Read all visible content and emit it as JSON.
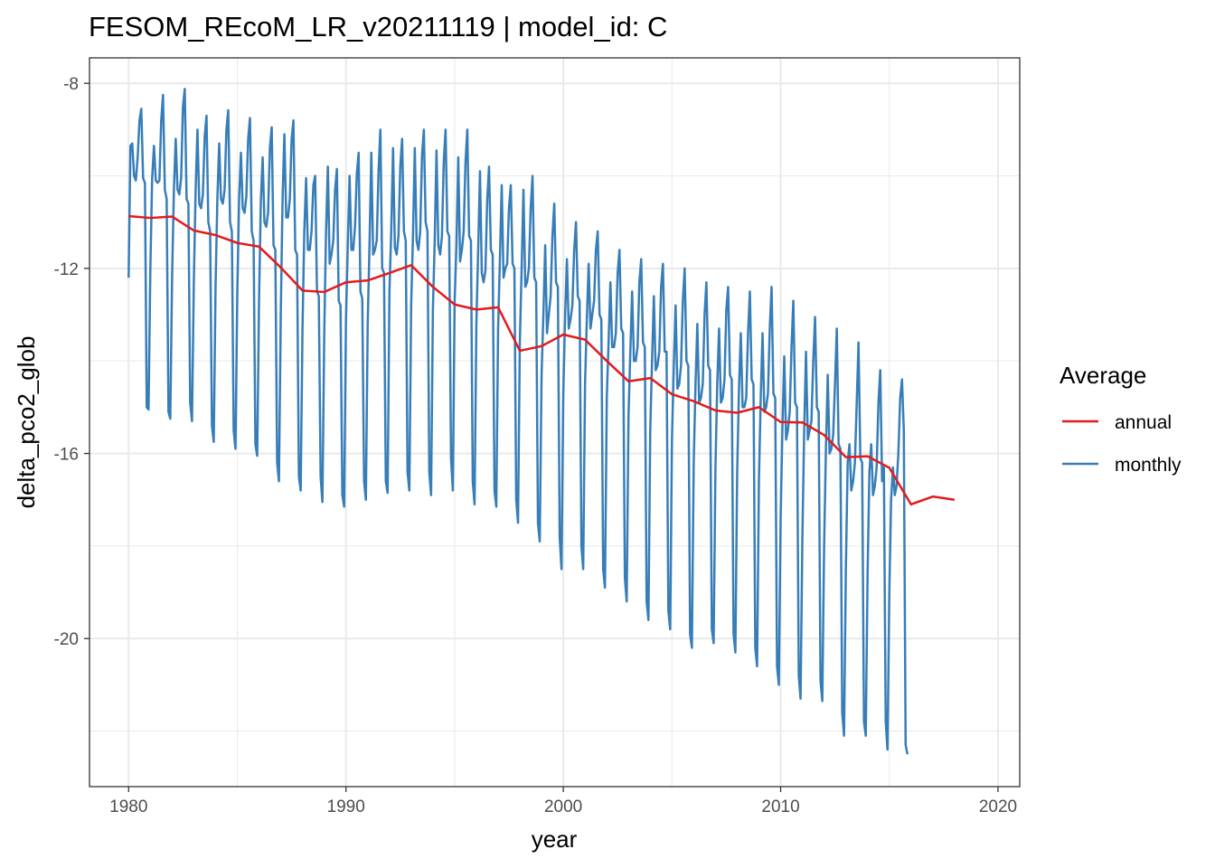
{
  "chart_data": {
    "type": "line",
    "title": "FESOM_REcoM_LR_v20211119 | model_id: C",
    "xlabel": "year",
    "ylabel": "delta_pco2_glob",
    "xlim": [
      1978.2,
      2021.0
    ],
    "ylim": [
      -23.2,
      -7.45
    ],
    "x_ticks": [
      1980,
      1990,
      2000,
      2010,
      2020
    ],
    "x_tick_labels": [
      "1980",
      "1990",
      "2000",
      "2010",
      "2020"
    ],
    "y_ticks": [
      -8,
      -12,
      -16,
      -20
    ],
    "y_tick_labels": [
      "-8",
      "-12",
      "-16",
      "-20"
    ],
    "grid": true,
    "legend": {
      "title": "Average",
      "position": "right",
      "entries": [
        {
          "label": "annual",
          "color": "#e41a1c"
        },
        {
          "label": "monthly",
          "color": "#377eb8"
        }
      ]
    },
    "series": [
      {
        "name": "annual",
        "color": "#e41a1c",
        "x": [
          1980,
          1981,
          1982,
          1983,
          1984,
          1985,
          1986,
          1987,
          1988,
          1989,
          1990,
          1991,
          1992,
          1993,
          1994,
          1995,
          1996,
          1997,
          1998,
          1999,
          2000,
          2001,
          2002,
          2003,
          2004,
          2005,
          2006,
          2007,
          2008,
          2009,
          2010,
          2011,
          2012,
          2013,
          2014,
          2015,
          2016,
          2017,
          2018
        ],
        "values": [
          -10.87,
          -10.91,
          -10.88,
          -11.18,
          -11.28,
          -11.45,
          -11.53,
          -11.98,
          -12.48,
          -12.51,
          -12.3,
          -12.26,
          -12.1,
          -11.93,
          -12.4,
          -12.78,
          -12.89,
          -12.84,
          -13.78,
          -13.68,
          -13.43,
          -13.54,
          -14.0,
          -14.44,
          -14.37,
          -14.72,
          -14.87,
          -15.07,
          -15.12,
          -15.0,
          -15.32,
          -15.33,
          -15.6,
          -16.08,
          -16.06,
          -16.31,
          -17.1,
          -16.93,
          -17.0
        ]
      },
      {
        "name": "monthly",
        "color": "#377eb8",
        "x_start": 1980.0,
        "x_step": 0.083333,
        "values": [
          -12.2,
          -9.35,
          -9.3,
          -10.0,
          -10.1,
          -9.6,
          -8.8,
          -8.55,
          -10.05,
          -10.15,
          -15.0,
          -15.05,
          -12.0,
          -10.05,
          -9.35,
          -10.1,
          -10.15,
          -10.1,
          -8.8,
          -8.25,
          -10.3,
          -10.5,
          -15.1,
          -15.25,
          -12.2,
          -10.3,
          -9.2,
          -10.3,
          -10.4,
          -10.05,
          -8.5,
          -8.12,
          -10.5,
          -10.6,
          -14.9,
          -15.3,
          -12.3,
          -10.3,
          -9.0,
          -10.6,
          -10.7,
          -10.4,
          -9.15,
          -8.7,
          -11.0,
          -11.2,
          -15.4,
          -15.75,
          -12.4,
          -10.5,
          -9.3,
          -10.5,
          -10.6,
          -10.3,
          -9.0,
          -8.58,
          -11.0,
          -11.2,
          -15.5,
          -15.9,
          -12.55,
          -10.5,
          -9.5,
          -10.7,
          -10.8,
          -10.45,
          -9.2,
          -8.75,
          -11.2,
          -11.4,
          -15.8,
          -16.05,
          -12.7,
          -10.55,
          -9.6,
          -11.0,
          -11.1,
          -10.8,
          -9.4,
          -8.95,
          -11.5,
          -11.6,
          -16.2,
          -16.6,
          -13.0,
          -10.5,
          -9.1,
          -10.9,
          -10.9,
          -10.5,
          -9.2,
          -8.8,
          -11.6,
          -11.7,
          -16.5,
          -16.8,
          -13.3,
          -11.2,
          -10.05,
          -11.6,
          -11.6,
          -11.2,
          -10.2,
          -10.0,
          -12.5,
          -12.6,
          -16.5,
          -17.05,
          -13.45,
          -11.2,
          -9.8,
          -11.9,
          -11.7,
          -11.4,
          -10.3,
          -9.85,
          -12.7,
          -12.8,
          -16.9,
          -17.15,
          -13.1,
          -11.5,
          -10.0,
          -11.6,
          -11.6,
          -11.1,
          -9.95,
          -9.5,
          -12.5,
          -12.65,
          -16.6,
          -17.0,
          -13.2,
          -11.5,
          -9.5,
          -11.7,
          -11.6,
          -11.4,
          -9.9,
          -9.0,
          -12.0,
          -12.1,
          -16.6,
          -16.85,
          -12.5,
          -11.2,
          -9.4,
          -11.55,
          -11.7,
          -11.3,
          -9.8,
          -9.2,
          -11.2,
          -11.4,
          -16.4,
          -16.8,
          -12.8,
          -11.3,
          -9.4,
          -11.4,
          -11.6,
          -11.2,
          -9.55,
          -9.0,
          -11.0,
          -11.2,
          -16.4,
          -16.9,
          -12.9,
          -11.4,
          -9.45,
          -11.5,
          -11.7,
          -11.3,
          -9.7,
          -9.0,
          -11.2,
          -11.3,
          -16.1,
          -16.8,
          -12.7,
          -11.5,
          -9.6,
          -11.85,
          -11.6,
          -11.2,
          -9.7,
          -9.0,
          -11.3,
          -11.4,
          -16.6,
          -17.1,
          -13.2,
          -11.6,
          -9.9,
          -12.1,
          -12.3,
          -12.05,
          -10.5,
          -9.8,
          -11.6,
          -11.7,
          -16.8,
          -17.15,
          -13.3,
          -11.8,
          -10.2,
          -12.2,
          -12.0,
          -11.9,
          -10.7,
          -10.2,
          -11.9,
          -12.0,
          -17.0,
          -17.5,
          -13.6,
          -12.0,
          -10.3,
          -12.4,
          -12.3,
          -12.0,
          -10.7,
          -10.0,
          -12.2,
          -12.3,
          -17.5,
          -17.9,
          -14.3,
          -13.0,
          -11.5,
          -13.4,
          -13.0,
          -12.6,
          -11.3,
          -10.6,
          -12.3,
          -12.4,
          -17.8,
          -18.5,
          -14.7,
          -13.0,
          -11.8,
          -13.3,
          -13.1,
          -12.8,
          -11.6,
          -11.0,
          -12.6,
          -12.7,
          -18.0,
          -18.5,
          -14.5,
          -13.1,
          -11.9,
          -13.3,
          -13.0,
          -12.7,
          -11.6,
          -11.2,
          -13.0,
          -13.1,
          -18.5,
          -18.9,
          -14.8,
          -13.6,
          -12.3,
          -13.7,
          -13.7,
          -13.4,
          -12.1,
          -11.6,
          -13.3,
          -13.4,
          -18.7,
          -19.2,
          -15.2,
          -13.8,
          -12.5,
          -14.0,
          -14.0,
          -13.7,
          -12.3,
          -11.8,
          -13.6,
          -13.7,
          -19.2,
          -19.6,
          -15.5,
          -14.0,
          -12.6,
          -14.2,
          -14.1,
          -13.8,
          -12.4,
          -11.9,
          -13.8,
          -13.8,
          -19.4,
          -19.8,
          -15.7,
          -14.1,
          -12.8,
          -14.6,
          -14.5,
          -14.1,
          -12.7,
          -12.0,
          -14.0,
          -14.1,
          -19.9,
          -20.2,
          -16.2,
          -14.5,
          -13.2,
          -14.9,
          -14.8,
          -14.5,
          -13.0,
          -12.3,
          -14.1,
          -14.2,
          -19.8,
          -20.1,
          -16.3,
          -14.5,
          -13.3,
          -14.9,
          -14.8,
          -14.4,
          -12.9,
          -12.4,
          -14.3,
          -14.4,
          -19.9,
          -20.3,
          -16.4,
          -14.6,
          -13.4,
          -15.0,
          -15.0,
          -14.8,
          -13.4,
          -12.5,
          -14.4,
          -14.5,
          -20.2,
          -20.6,
          -16.6,
          -14.8,
          -13.4,
          -15.1,
          -15.0,
          -14.7,
          -13.3,
          -12.4,
          -14.7,
          -14.8,
          -20.6,
          -21.0,
          -17.4,
          -15.4,
          -13.9,
          -15.7,
          -15.5,
          -15.1,
          -13.7,
          -12.7,
          -14.9,
          -15.0,
          -20.8,
          -21.3,
          -17.8,
          -15.5,
          -13.8,
          -15.7,
          -15.5,
          -15.3,
          -14.0,
          -13.05,
          -15.0,
          -15.1,
          -20.9,
          -21.35,
          -18.0,
          -15.9,
          -14.3,
          -16.0,
          -15.9,
          -15.6,
          -14.5,
          -13.3,
          -15.8,
          -15.9,
          -21.6,
          -22.1,
          -18.5,
          -16.2,
          -15.8,
          -16.8,
          -16.6,
          -16.2,
          -14.9,
          -13.6,
          -16.1,
          -16.2,
          -21.8,
          -22.1,
          -18.6,
          -16.4,
          -15.8,
          -16.9,
          -16.7,
          -16.3,
          -14.9,
          -14.2,
          -16.6,
          -16.3,
          -21.8,
          -22.4,
          -19.0,
          -17.0,
          -16.3,
          -16.9,
          -16.7,
          -16.0,
          -14.8,
          -14.4,
          -15.5,
          -22.3,
          -22.5
        ]
      }
    ]
  }
}
